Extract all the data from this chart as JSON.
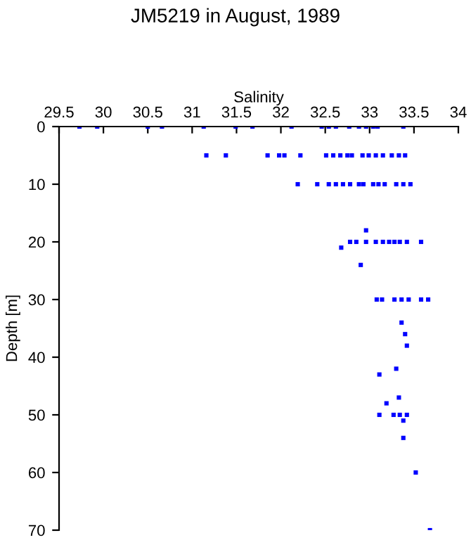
{
  "chart_data": {
    "type": "scatter",
    "title": "JM5219 in August, 1989",
    "xlabel": "Salinity",
    "ylabel": "Depth [m]",
    "x": [
      29.73,
      29.93,
      30.5,
      30.66,
      31.13,
      31.49,
      31.68,
      32.12,
      32.46,
      32.54,
      32.62,
      32.77,
      32.88,
      32.96,
      33.04,
      33.09,
      33.38,
      31.16,
      31.38,
      31.85,
      31.98,
      32.04,
      32.22,
      32.51,
      32.59,
      32.67,
      32.75,
      32.8,
      32.92,
      32.99,
      33.07,
      33.15,
      33.25,
      33.33,
      33.4,
      32.19,
      32.41,
      32.54,
      32.62,
      32.7,
      32.78,
      32.88,
      32.93,
      33.04,
      33.1,
      33.17,
      33.3,
      33.38,
      33.46,
      32.96,
      32.78,
      32.85,
      32.96,
      33.07,
      33.15,
      33.22,
      33.28,
      33.34,
      33.42,
      33.58,
      32.68,
      32.9,
      33.08,
      33.14,
      33.28,
      33.36,
      33.44,
      33.58,
      33.66,
      33.36,
      33.4,
      33.42,
      33.3,
      33.11,
      33.33,
      33.19,
      33.11,
      33.27,
      33.34,
      33.42,
      33.38,
      33.38,
      33.52,
      33.68
    ],
    "values": [
      0,
      0,
      0,
      0,
      0,
      0,
      0,
      0,
      0,
      0,
      0,
      0,
      0,
      0,
      0,
      0,
      0,
      5,
      5,
      5,
      5,
      5,
      5,
      5,
      5,
      5,
      5,
      5,
      5,
      5,
      5,
      5,
      5,
      5,
      5,
      10,
      10,
      10,
      10,
      10,
      10,
      10,
      10,
      10,
      10,
      10,
      10,
      10,
      10,
      18,
      20,
      20,
      20,
      20,
      20,
      20,
      20,
      20,
      20,
      20,
      21,
      24,
      30,
      30,
      30,
      30,
      30,
      30,
      30,
      34,
      36,
      38,
      42,
      43,
      47,
      48,
      50,
      50,
      50,
      50,
      51,
      54,
      60,
      70
    ],
    "color": "#0000ff",
    "marker": "square",
    "xlim": [
      29.5,
      34
    ],
    "xticks": [
      29.5,
      30,
      30.5,
      31,
      31.5,
      32,
      32.5,
      33,
      33.5,
      34
    ],
    "ylim": [
      70,
      0
    ],
    "yticks": [
      0,
      10,
      20,
      30,
      40,
      50,
      60,
      70
    ],
    "grid": false,
    "legend": false
  }
}
